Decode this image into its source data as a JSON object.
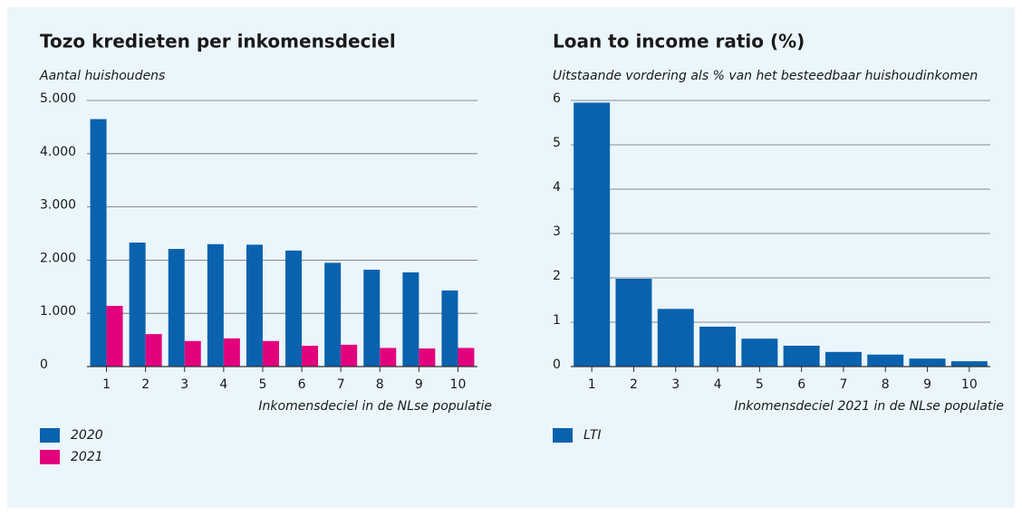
{
  "chart_data": [
    {
      "type": "bar",
      "title": "Tozo kredieten per inkomensdeciel",
      "subtitle": "Aantal huishoudens",
      "x_label": "Inkomensdeciel in de NLse populatie",
      "categories": [
        "1",
        "2",
        "3",
        "4",
        "5",
        "6",
        "7",
        "8",
        "9",
        "10"
      ],
      "series": [
        {
          "name": "2020",
          "color": "#0a62ae",
          "values": [
            4650,
            2330,
            2210,
            2300,
            2290,
            2180,
            1950,
            1820,
            1770,
            1430
          ]
        },
        {
          "name": "2021",
          "color": "#e3007d",
          "values": [
            1140,
            610,
            480,
            530,
            480,
            390,
            410,
            350,
            340,
            350
          ]
        }
      ],
      "ylim": [
        0,
        5000
      ],
      "yticks": [
        0,
        {
          "value": 1000,
          "label": "1.000"
        },
        {
          "value": 2000,
          "label": "2.000"
        },
        {
          "value": 3000,
          "label": "3.000"
        },
        {
          "value": 4000,
          "label": "4.000"
        },
        {
          "value": 5000,
          "label": "5.000"
        }
      ],
      "grid": true
    },
    {
      "type": "bar",
      "title": "Loan to income ratio (%)",
      "subtitle": "Uitstaande vordering als % van het besteedbaar huishoudinkomen",
      "x_label": "Inkomensdeciel 2021 in de NLse populatie",
      "categories": [
        "1",
        "2",
        "3",
        "4",
        "5",
        "6",
        "7",
        "8",
        "9",
        "10"
      ],
      "series": [
        {
          "name": "LTI",
          "color": "#0a62ae",
          "values": [
            5.95,
            1.98,
            1.3,
            0.9,
            0.63,
            0.47,
            0.33,
            0.27,
            0.18,
            0.12
          ]
        }
      ],
      "ylim": [
        0,
        6
      ],
      "yticks": [
        0,
        1,
        2,
        3,
        4,
        5,
        6
      ],
      "grid": true
    }
  ]
}
